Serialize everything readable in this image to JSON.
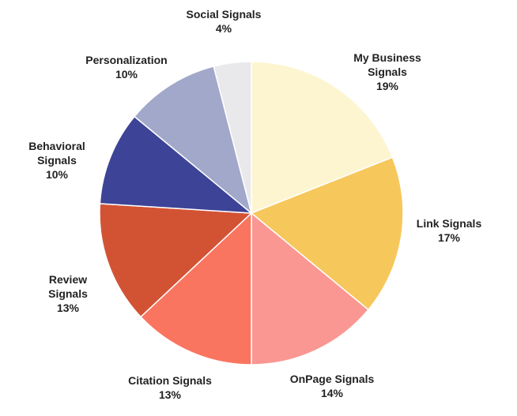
{
  "chart_data": {
    "type": "pie",
    "title": "",
    "start_angle": "12 o'clock",
    "direction": "clockwise",
    "slices": [
      {
        "label": [
          "My Business",
          "Signals"
        ],
        "value": 19,
        "text": "19%",
        "color": "#FDF5D0"
      },
      {
        "label": [
          "Link Signals"
        ],
        "value": 17,
        "text": "17%",
        "color": "#F6C75B"
      },
      {
        "label": [
          "OnPage Signals"
        ],
        "value": 14,
        "text": "14%",
        "color": "#FA9793"
      },
      {
        "label": [
          "Citation Signals"
        ],
        "value": 13,
        "text": "13%",
        "color": "#F9755F"
      },
      {
        "label": [
          "Review",
          "Signals"
        ],
        "value": 13,
        "text": "13%",
        "color": "#D25334"
      },
      {
        "label": [
          "Behavioral",
          "Signals"
        ],
        "value": 10,
        "text": "10%",
        "color": "#3D4396"
      },
      {
        "label": [
          "Personalization"
        ],
        "value": 10,
        "text": "10%",
        "color": "#A1A8CA"
      },
      {
        "label": [
          "Social Signals"
        ],
        "value": 4,
        "text": "4%",
        "color": "#E9E9EB"
      }
    ]
  }
}
